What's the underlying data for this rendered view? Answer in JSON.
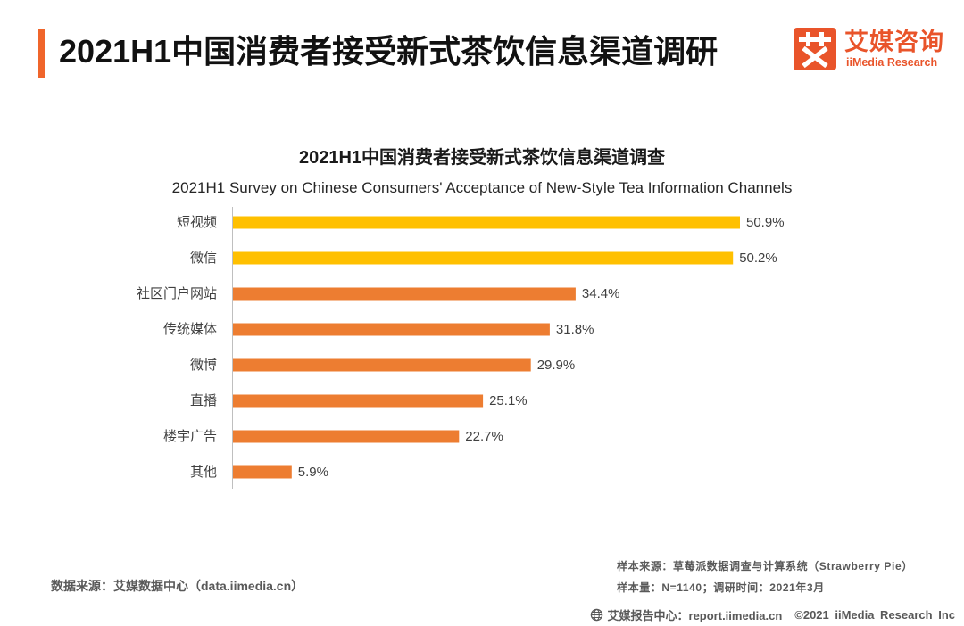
{
  "header": {
    "title": "2021H1中国消费者接受新式茶饮信息渠道调研",
    "accent_color": "#F0652B"
  },
  "logo": {
    "mark_glyph": "艾",
    "mark_icon": "iimedia-logo-icon",
    "name_cn": "艾媒咨询",
    "name_en": "iiMedia Research",
    "color": "#E9542A"
  },
  "chart_data": {
    "type": "bar",
    "orientation": "horizontal",
    "title": "2021H1中国消费者接受新式茶饮信息渠道调查",
    "subtitle": "2021H1 Survey on Chinese Consumers' Acceptance of New-Style Tea Information Channels",
    "categories": [
      "短视频",
      "微信",
      "社区门户网站",
      "传统媒体",
      "微博",
      "直播",
      "楼宇广告",
      "其他"
    ],
    "values": [
      50.9,
      50.2,
      34.4,
      31.8,
      29.9,
      25.1,
      22.7,
      5.9
    ],
    "data_labels": [
      "50.9%",
      "50.2%",
      "34.4%",
      "31.8%",
      "29.9%",
      "25.1%",
      "22.7%",
      "5.9%"
    ],
    "colors": [
      "#FFC000",
      "#FFC000",
      "#ED7D31",
      "#ED7D31",
      "#ED7D31",
      "#ED7D31",
      "#ED7D31",
      "#ED7D31"
    ],
    "grid": false
  },
  "footer": {
    "data_source": "数据来源：艾媒数据中心（data.iimedia.cn）",
    "sample_source": "样本来源：草莓派数据调查与计算系统（Strawberry Pie）",
    "sample_info": "样本量：N=1140；调研时间：2021年3月",
    "report_center": "艾媒报告中心：report.iimedia.cn",
    "copyright": "©2021 iiMedia Research Inc",
    "globe_icon": "globe-icon"
  }
}
